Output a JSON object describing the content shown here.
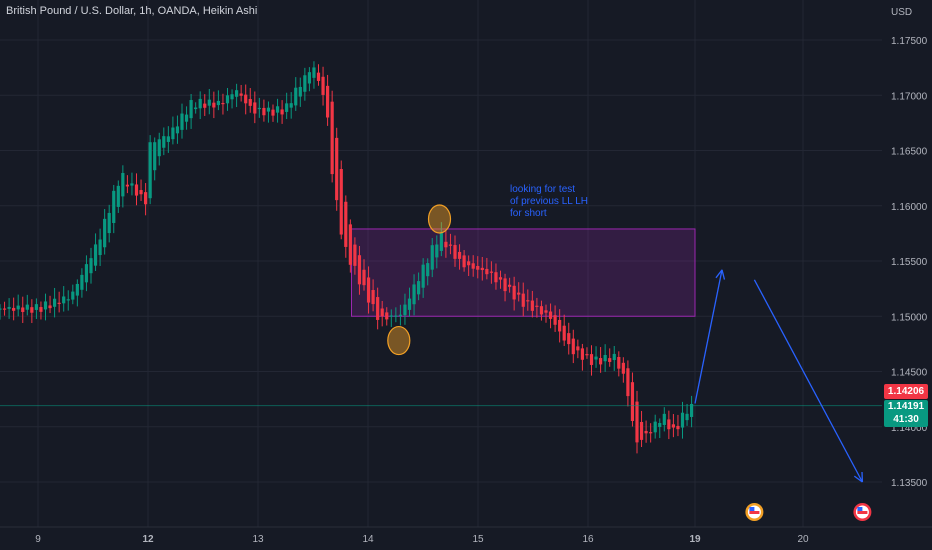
{
  "header": {
    "title": "British Pound / U.S. Dollar, 1h, OANDA, Heikin Ashi",
    "currency": "USD"
  },
  "price_tags": {
    "last_price": "1.14206",
    "current_price": "1.14191",
    "countdown": "41:30"
  },
  "annotation": {
    "text": "looking for test\nof previous LL LH\nfor short"
  },
  "colors": {
    "background": "#161a25",
    "up": "#089981",
    "down": "#f23645",
    "zone": "#9c27b0",
    "arrow": "#2962ff",
    "marker": "#f2a025"
  },
  "chart_data": {
    "type": "candlestick",
    "symbol": "GBPUSD",
    "timeframe": "1h",
    "y_ticks": [
      "1.17500",
      "1.17000",
      "1.16500",
      "1.16000",
      "1.15500",
      "1.15000",
      "1.14500",
      "1.14000",
      "1.13500"
    ],
    "ylim": [
      1.1335,
      1.178
    ],
    "x_ticks": [
      "9",
      "12",
      "13",
      "14",
      "15",
      "16",
      "19",
      "20"
    ],
    "x_tick_days": [
      9,
      12,
      13,
      14,
      15,
      16,
      19,
      20
    ],
    "close_path": [
      [
        9.0,
        1.1507
      ],
      [
        9.3,
        1.1518
      ],
      [
        9.55,
        1.1568
      ],
      [
        9.75,
        1.1628
      ],
      [
        10.0,
        1.1601
      ],
      [
        10.15,
        1.1591
      ],
      [
        10.35,
        1.1603
      ],
      [
        10.5,
        1.1611
      ],
      [
        10.75,
        1.1638
      ],
      [
        10.9,
        1.1648
      ],
      [
        11.1,
        1.1611
      ],
      [
        12.2,
        1.1665
      ],
      [
        12.4,
        1.1693
      ],
      [
        12.65,
        1.1692
      ],
      [
        12.8,
        1.1705
      ],
      [
        12.95,
        1.1686
      ],
      [
        13.1,
        1.1685
      ],
      [
        13.25,
        1.1687
      ],
      [
        13.35,
        1.1705
      ],
      [
        13.5,
        1.1727
      ],
      [
        13.62,
        1.1693
      ],
      [
        13.68,
        1.1624
      ],
      [
        13.78,
        1.1563
      ],
      [
        13.95,
        1.1527
      ],
      [
        14.1,
        1.1497
      ],
      [
        14.3,
        1.1502
      ],
      [
        14.5,
        1.1543
      ],
      [
        14.65,
        1.1574
      ],
      [
        14.85,
        1.1547
      ],
      [
        15.1,
        1.1539
      ],
      [
        15.4,
        1.1513
      ],
      [
        15.65,
        1.15
      ],
      [
        15.85,
        1.1469
      ],
      [
        16.05,
        1.1459
      ],
      [
        16.25,
        1.1463
      ],
      [
        16.35,
        1.1442
      ],
      [
        16.45,
        1.1385
      ],
      [
        16.55,
        1.1393
      ],
      [
        16.7,
        1.141
      ],
      [
        16.8,
        1.1395
      ],
      [
        16.92,
        1.1415
      ],
      [
        17.0,
        1.1419
      ]
    ],
    "zone": {
      "x_start": 13.85,
      "x_end": 18.35,
      "y_low": 1.15,
      "y_high": 1.1579
    },
    "markers": [
      {
        "x": 14.28,
        "y": 1.1478
      },
      {
        "x": 14.65,
        "y": 1.1588
      }
    ],
    "projection_arrows": [
      {
        "from": [
          18.95,
          1.1421
        ],
        "to": [
          19.25,
          1.1542
        ]
      },
      {
        "from": [
          19.55,
          1.1533
        ],
        "to": [
          20.55,
          1.135
        ]
      }
    ],
    "current_price": 1.14191,
    "event_icons": [
      {
        "x": 19.55
      },
      {
        "x": 20.55
      }
    ]
  }
}
